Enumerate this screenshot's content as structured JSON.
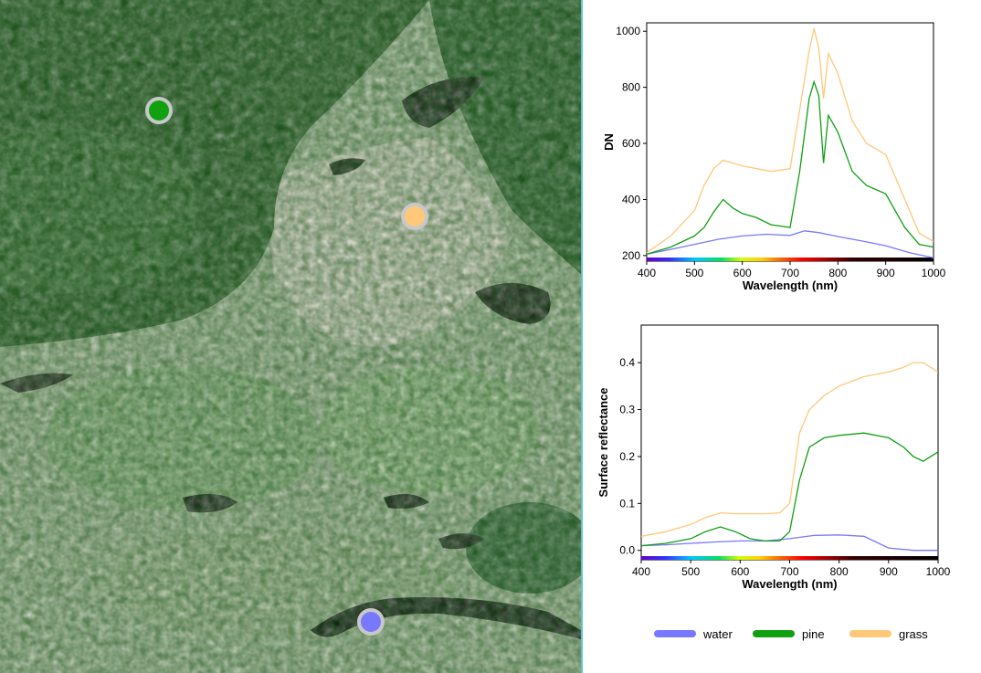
{
  "imagery": {
    "markers": [
      {
        "class": "pine",
        "color": "#10a010"
      },
      {
        "class": "grass",
        "color": "#ffc878"
      },
      {
        "class": "water",
        "color": "#7878ff"
      }
    ]
  },
  "legend": [
    {
      "name": "water",
      "color": "#7878ff"
    },
    {
      "name": "pine",
      "color": "#10a010"
    },
    {
      "name": "grass",
      "color": "#ffc878"
    }
  ],
  "chart_data": [
    {
      "type": "line",
      "title": "",
      "xlabel": "Wavelength (nm)",
      "ylabel": "DN",
      "xlim": [
        400,
        1000
      ],
      "ylim": [
        180,
        1030
      ],
      "x_ticks": [
        400,
        500,
        600,
        700,
        800,
        900,
        1000
      ],
      "y_ticks": [
        200,
        400,
        600,
        800,
        1000
      ],
      "grid": false,
      "spectrum_bar": true,
      "series": [
        {
          "name": "water",
          "color": "#7878ff",
          "x": [
            400,
            450,
            500,
            550,
            600,
            650,
            700,
            730,
            760,
            800,
            850,
            900,
            950,
            1000
          ],
          "y": [
            205,
            222,
            240,
            258,
            270,
            276,
            272,
            288,
            282,
            268,
            252,
            235,
            210,
            192
          ]
        },
        {
          "name": "pine",
          "color": "#10a010",
          "x": [
            400,
            450,
            500,
            520,
            540,
            560,
            580,
            600,
            630,
            660,
            700,
            720,
            740,
            750,
            760,
            770,
            780,
            800,
            830,
            860,
            900,
            940,
            970,
            1000
          ],
          "y": [
            205,
            230,
            270,
            300,
            355,
            400,
            370,
            350,
            335,
            310,
            300,
            500,
            760,
            820,
            770,
            530,
            700,
            640,
            500,
            450,
            420,
            300,
            240,
            230
          ]
        },
        {
          "name": "grass",
          "color": "#ffc878",
          "x": [
            400,
            450,
            500,
            520,
            540,
            560,
            580,
            600,
            630,
            660,
            700,
            720,
            740,
            750,
            760,
            770,
            780,
            800,
            830,
            860,
            900,
            940,
            970,
            1000
          ],
          "y": [
            210,
            270,
            360,
            450,
            510,
            540,
            530,
            520,
            510,
            500,
            510,
            720,
            930,
            1010,
            940,
            760,
            920,
            850,
            680,
            600,
            560,
            400,
            280,
            250
          ]
        }
      ]
    },
    {
      "type": "line",
      "title": "",
      "xlabel": "Wavelength (nm)",
      "ylabel": "Surface reflectance",
      "xlim": [
        400,
        1000
      ],
      "ylim": [
        -0.02,
        0.48
      ],
      "x_ticks": [
        400,
        500,
        600,
        700,
        800,
        900,
        1000
      ],
      "y_ticks": [
        0.0,
        0.1,
        0.2,
        0.3,
        0.4
      ],
      "grid": false,
      "spectrum_bar": true,
      "series": [
        {
          "name": "water",
          "color": "#7878ff",
          "x": [
            400,
            450,
            500,
            550,
            600,
            650,
            700,
            750,
            800,
            850,
            870,
            900,
            950,
            1000
          ],
          "y": [
            0.01,
            0.012,
            0.015,
            0.018,
            0.02,
            0.02,
            0.025,
            0.032,
            0.033,
            0.03,
            0.02,
            0.005,
            0.0,
            0.0
          ]
        },
        {
          "name": "pine",
          "color": "#10a010",
          "x": [
            400,
            450,
            500,
            530,
            560,
            590,
            620,
            650,
            680,
            700,
            720,
            740,
            770,
            800,
            850,
            900,
            930,
            950,
            970,
            1000
          ],
          "y": [
            0.01,
            0.015,
            0.025,
            0.04,
            0.05,
            0.04,
            0.025,
            0.02,
            0.02,
            0.04,
            0.15,
            0.22,
            0.24,
            0.245,
            0.25,
            0.24,
            0.22,
            0.2,
            0.19,
            0.21
          ]
        },
        {
          "name": "grass",
          "color": "#ffc878",
          "x": [
            400,
            450,
            500,
            530,
            560,
            590,
            620,
            650,
            680,
            700,
            720,
            740,
            770,
            800,
            850,
            900,
            930,
            950,
            970,
            1000
          ],
          "y": [
            0.03,
            0.04,
            0.055,
            0.07,
            0.08,
            0.078,
            0.078,
            0.078,
            0.08,
            0.1,
            0.25,
            0.3,
            0.33,
            0.35,
            0.37,
            0.38,
            0.39,
            0.4,
            0.4,
            0.38
          ]
        }
      ]
    }
  ]
}
